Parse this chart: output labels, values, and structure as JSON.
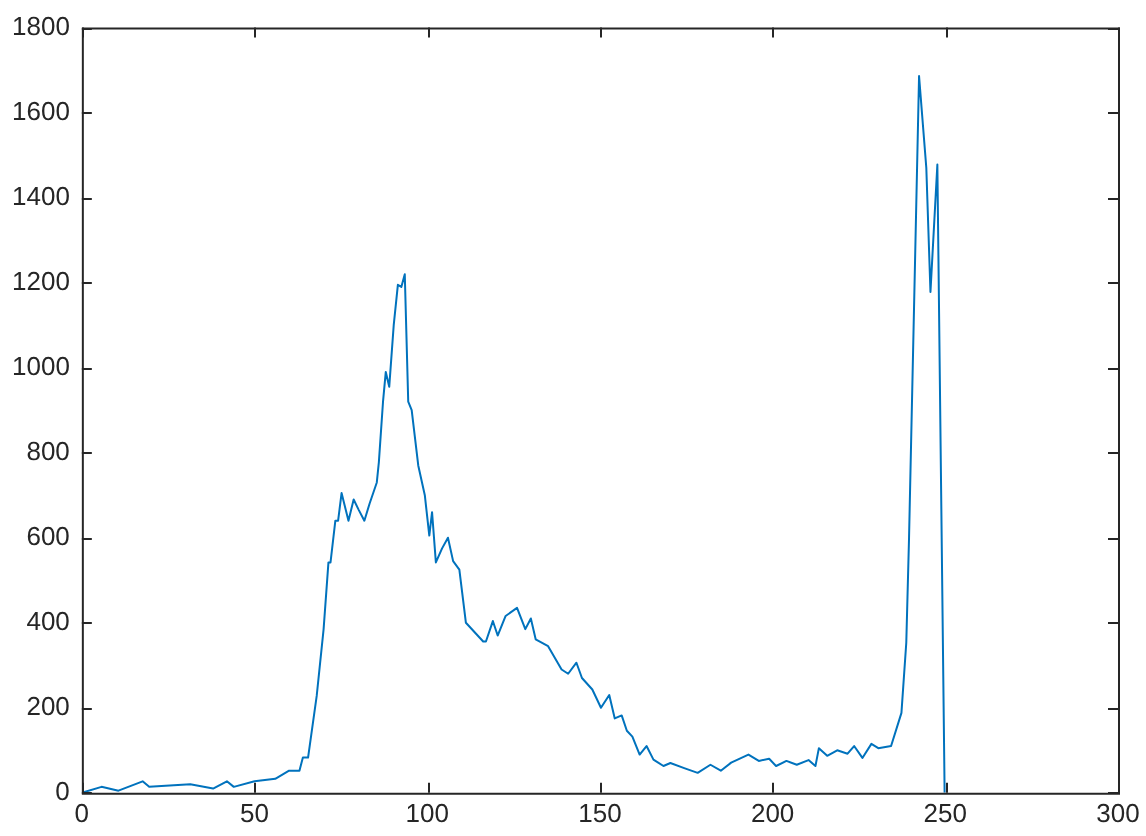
{
  "chart_data": {
    "type": "line",
    "color": "#0072bd",
    "grid": false,
    "legend": false,
    "marker": "none",
    "line_style": "solid",
    "x": [
      0,
      5.7,
      10.6,
      17.6,
      19.5,
      31.4,
      38,
      42,
      44,
      50,
      56,
      60,
      63,
      64,
      65.5,
      68,
      70,
      71.4,
      72,
      73.4,
      74.2,
      75.2,
      77.2,
      78.7,
      80.2,
      81.8,
      83.3,
      85.4,
      86,
      87.2,
      88,
      89,
      90.3,
      91.5,
      92.5,
      93.5,
      94.5,
      95.5,
      97.4,
      99.3,
      100.6,
      101.4,
      102.5,
      104.3,
      106,
      107.5,
      109.3,
      111.2,
      116.2,
      117,
      119,
      120.4,
      122.7,
      126,
      128.4,
      130,
      131.4,
      135,
      138.9,
      140.8,
      143.2,
      144.8,
      147.8,
      150.3,
      152.7,
      154.3,
      156.3,
      157.8,
      159.4,
      161.5,
      163.5,
      165.5,
      168.4,
      170.4,
      174.4,
      178.3,
      182,
      185,
      188,
      193,
      196,
      199,
      201,
      204,
      207,
      210.4,
      212.4,
      213.4,
      215.8,
      218.7,
      221.7,
      223.6,
      226,
      228.6,
      230.6,
      234.3,
      237.3,
      238.7,
      239.5,
      242.4,
      244.5,
      245.7,
      247.7,
      249.8
    ],
    "values": [
      0,
      14,
      5,
      27,
      14,
      20,
      10,
      27,
      14,
      27,
      33,
      52,
      52,
      83,
      83,
      228,
      385,
      542,
      542,
      640,
      640,
      705,
      640,
      690,
      665,
      640,
      680,
      730,
      778,
      920,
      990,
      955,
      1100,
      1195,
      1190,
      1220,
      920,
      900,
      770,
      700,
      605,
      660,
      542,
      575,
      600,
      545,
      525,
      400,
      356,
      356,
      404,
      370,
      416,
      435,
      385,
      410,
      361,
      345,
      290,
      280,
      306,
      270,
      243,
      200,
      230,
      175,
      182,
      146,
      132,
      90,
      110,
      78,
      63,
      70,
      58,
      47,
      66,
      52,
      71,
      90,
      75,
      80,
      63,
      75,
      66,
      77,
      63,
      105,
      87,
      100,
      92,
      110,
      82,
      115,
      105,
      110,
      188,
      353,
      600,
      1686,
      1470,
      1178,
      1478,
      0
    ],
    "xlim": [
      0,
      300
    ],
    "xticks": [
      0,
      50,
      100,
      150,
      200,
      250,
      300
    ],
    "ylim": [
      0,
      1800
    ],
    "yticks": [
      0,
      200,
      400,
      600,
      800,
      1000,
      1200,
      1400,
      1600,
      1800
    ]
  }
}
